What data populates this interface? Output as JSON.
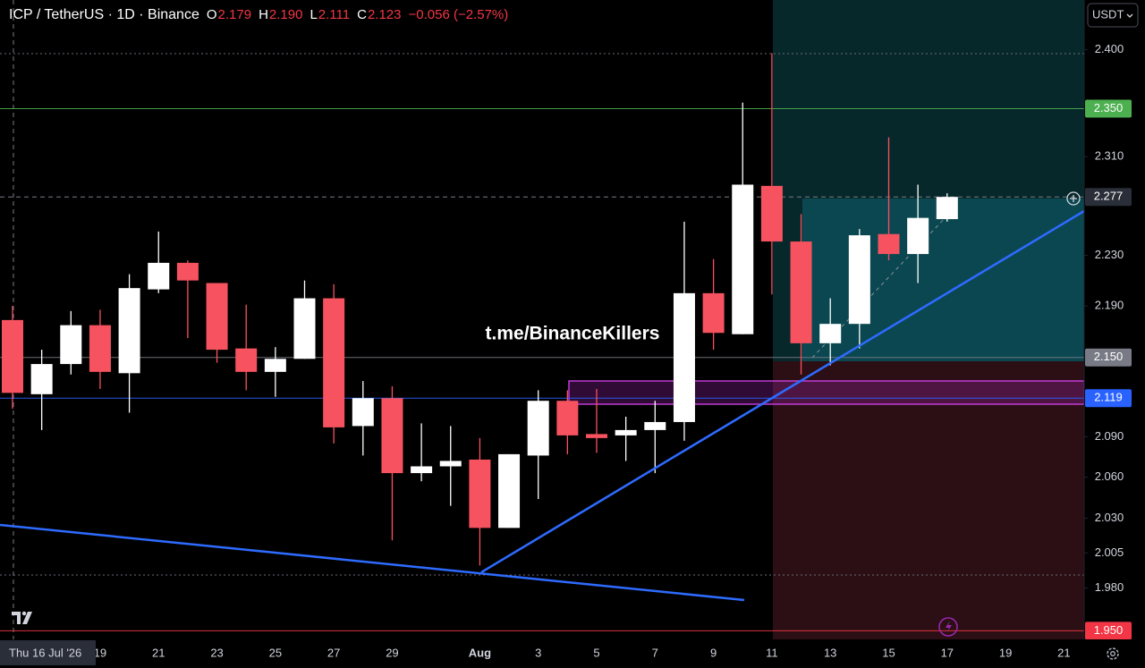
{
  "header": {
    "title": "ICP / TetherUS · 1D · Binance",
    "ohlc": [
      {
        "key": "O",
        "value": "2.179"
      },
      {
        "key": "H",
        "value": "2.190"
      },
      {
        "key": "L",
        "value": "2.111"
      },
      {
        "key": "C",
        "value": "2.123"
      }
    ],
    "change": "−0.056 (−2.57%)",
    "currency_button": "USDT"
  },
  "chart_data": {
    "type": "candlestick",
    "log_scale": true,
    "watermark": "t.me/BinanceKillers",
    "crosshair_label": "Thu 16 Jul '26",
    "categories": [
      null,
      null,
      null,
      "19",
      null,
      "21",
      null,
      "23",
      null,
      "25",
      null,
      "27",
      null,
      "29",
      null,
      null,
      "Aug",
      null,
      "3",
      null,
      "5",
      null,
      "7",
      null,
      "9",
      null,
      "11",
      null,
      "13",
      null,
      "15",
      null,
      "17",
      null,
      "19",
      null,
      "21"
    ],
    "open": [
      2.179,
      2.122,
      2.145,
      2.175,
      2.138,
      2.203,
      2.224,
      2.208,
      2.157,
      2.139,
      2.149,
      2.196,
      2.098,
      2.119,
      2.063,
      2.068,
      2.073,
      2.023,
      2.076,
      2.117,
      2.092,
      2.091,
      2.095,
      2.101,
      2.2,
      2.168,
      2.286,
      2.241,
      2.161,
      2.176,
      2.247,
      2.231,
      2.259,
      null,
      null,
      null,
      null
    ],
    "high": [
      2.19,
      2.156,
      2.186,
      2.187,
      2.215,
      2.249,
      2.226,
      2.208,
      2.191,
      2.158,
      2.21,
      2.207,
      2.132,
      2.128,
      2.1,
      2.098,
      2.089,
      2.077,
      2.125,
      2.125,
      2.126,
      2.105,
      2.117,
      2.257,
      2.227,
      2.355,
      2.397,
      2.263,
      2.196,
      2.251,
      2.326,
      2.287,
      2.28,
      null,
      null,
      null,
      null
    ],
    "low": [
      2.111,
      2.095,
      2.137,
      2.126,
      2.108,
      2.2,
      2.165,
      2.146,
      2.125,
      2.12,
      2.149,
      2.085,
      2.076,
      2.014,
      2.057,
      2.039,
      1.996,
      2.023,
      2.044,
      2.077,
      2.078,
      2.072,
      2.063,
      2.087,
      2.156,
      2.168,
      2.199,
      2.137,
      2.144,
      2.157,
      2.226,
      2.208,
      2.257,
      null,
      null,
      null,
      null
    ],
    "close": [
      2.123,
      2.145,
      2.175,
      2.139,
      2.204,
      2.224,
      2.21,
      2.156,
      2.139,
      2.149,
      2.196,
      2.097,
      2.119,
      2.063,
      2.068,
      2.072,
      2.023,
      2.077,
      2.117,
      2.091,
      2.089,
      2.095,
      2.101,
      2.2,
      2.169,
      2.287,
      2.241,
      2.161,
      2.176,
      2.246,
      2.231,
      2.26,
      2.277,
      null,
      null,
      null,
      null
    ],
    "up_color": "#ffffff",
    "down_color": "#f7525f",
    "ylim": [
      1.944,
      2.443
    ],
    "yticks": [
      {
        "value": 2.4,
        "label": "2.400"
      },
      {
        "value": 2.31,
        "label": "2.310"
      },
      {
        "value": 2.23,
        "label": "2.230"
      },
      {
        "value": 2.19,
        "label": "2.190"
      },
      {
        "value": 2.09,
        "label": "2.090"
      },
      {
        "value": 2.06,
        "label": "2.060"
      },
      {
        "value": 2.03,
        "label": "2.030"
      },
      {
        "value": 2.005,
        "label": "2.005"
      },
      {
        "value": 1.98,
        "label": "1.980"
      }
    ],
    "price_labels": [
      {
        "value": 2.35,
        "label": "2.350",
        "color": "#4caf50"
      },
      {
        "value": 2.277,
        "label": "2.277",
        "color": "#2a2e39"
      },
      {
        "value": 2.15,
        "label": "2.150",
        "color": "#787b86"
      },
      {
        "value": 2.119,
        "label": "2.119",
        "color": "#2962ff"
      },
      {
        "value": 1.95,
        "label": "1.950",
        "color": "#f23645"
      }
    ]
  }
}
